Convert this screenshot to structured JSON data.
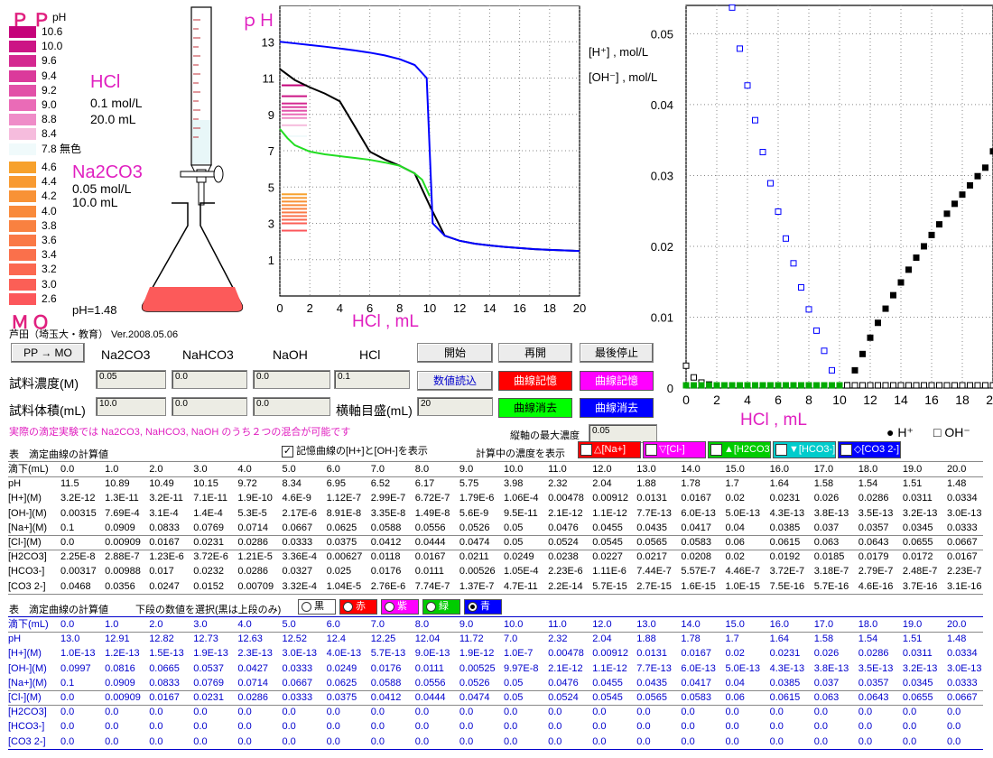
{
  "pp_indicator": {
    "title": "ＰＰ",
    "unit": "pH",
    "entries": [
      {
        "label": "10.6",
        "color": "#c5037a"
      },
      {
        "label": "10.0",
        "color": "#cc1585"
      },
      {
        "label": "9.6",
        "color": "#d42890"
      },
      {
        "label": "9.4",
        "color": "#db3a9b"
      },
      {
        "label": "9.2",
        "color": "#e251a8"
      },
      {
        "label": "9.0",
        "color": "#ea6bb7"
      },
      {
        "label": "8.8",
        "color": "#ef8cc8"
      },
      {
        "label": "8.4",
        "color": "#f6bcdd"
      },
      {
        "label": "7.8 無色",
        "color": "#f0fafb"
      }
    ]
  },
  "mo_indicator": {
    "title": "ＭＯ",
    "entries": [
      {
        "label": "4.6",
        "color": "#f7a12c"
      },
      {
        "label": "4.4",
        "color": "#f89a31"
      },
      {
        "label": "4.2",
        "color": "#f89236"
      },
      {
        "label": "4.0",
        "color": "#f98a3b"
      },
      {
        "label": "3.8",
        "color": "#f98140"
      },
      {
        "label": "3.6",
        "color": "#fa7946"
      },
      {
        "label": "3.4",
        "color": "#fa704b"
      },
      {
        "label": "3.2",
        "color": "#fb6850"
      },
      {
        "label": "3.0",
        "color": "#fb5f56"
      },
      {
        "label": "2.6",
        "color": "#fc575b"
      }
    ]
  },
  "titrant": {
    "name": "HCl",
    "conc": "0.1 mol/L",
    "vol": "20.0 mL"
  },
  "sample": {
    "name": "Na2CO3",
    "conc": "0.05 mol/L",
    "vol": "10.0 mL"
  },
  "flask_ph": "pH=1.48",
  "author": "芦田（埼玉大・教育） Ver.2008.05.06",
  "ph_chart_labels": {
    "ylabel": "ｐＨ",
    "xlabel": "HCl , mL"
  },
  "conc_chart_labels": {
    "h_label": "[H⁺] , mol/L",
    "oh_label": "[OH⁻] , mol/L",
    "xlabel": "HCl , mL"
  },
  "controls": {
    "pp_mo_btn": "PP → MO",
    "col_headers": [
      "Na2CO3",
      "NaHCO3",
      "NaOH",
      "HCl"
    ],
    "row1_label": "試料濃度(M)",
    "row2_label": "試料体積(mL)",
    "row1_values": [
      "0.05",
      "0.0",
      "0.0",
      "0.1"
    ],
    "row2_values": [
      "10.0",
      "0.0",
      "0.0"
    ],
    "axis_label": "横軸目盛(mL)",
    "axis_value": "20",
    "start": "開始",
    "resume": "再開",
    "stop": "最後停止",
    "read": "数値読込",
    "memory_red": "曲線記憶",
    "memory_magenta": "曲線記憶",
    "erase_green": "曲線消去",
    "erase_blue": "曲線消去",
    "note": "実際の滴定実験では Na2CO3, NaHCO3, NaOH のうち２つの混合が可能です",
    "max_conc_label": "縦軸の最大濃度",
    "max_conc_value": "0.05",
    "legend_h": "● H⁺",
    "legend_oh": "□ OH⁻"
  },
  "show_bar": {
    "table_title": "表　滴定曲線の計算値",
    "mem_check": "記憶曲線の[H+]と[OH-]を表示",
    "show_label": "計算中の濃度を表示",
    "species": [
      {
        "label": "△[Na+]",
        "color": "#ff0000"
      },
      {
        "label": "▽[Cl-]",
        "color": "#ff00ff"
      },
      {
        "label": "▲[H2CO3]",
        "color": "#00cc00"
      },
      {
        "label": "▼[HCO3-]",
        "color": "#00cccc"
      },
      {
        "label": "◇[CO3 2-]",
        "color": "#0000ff"
      }
    ]
  },
  "table1": {
    "rows": [
      {
        "label": "滴下(mL)",
        "values": [
          "0.0",
          "1.0",
          "2.0",
          "3.0",
          "4.0",
          "5.0",
          "6.0",
          "7.0",
          "8.0",
          "9.0",
          "10.0",
          "11.0",
          "12.0",
          "13.0",
          "14.0",
          "15.0",
          "16.0",
          "17.0",
          "18.0",
          "19.0",
          "20.0"
        ]
      },
      {
        "label": "pH",
        "values": [
          "11.5",
          "10.89",
          "10.49",
          "10.15",
          "9.72",
          "8.34",
          "6.95",
          "6.52",
          "6.17",
          "5.75",
          "3.98",
          "2.32",
          "2.04",
          "1.88",
          "1.78",
          "1.7",
          "1.64",
          "1.58",
          "1.54",
          "1.51",
          "1.48"
        ]
      },
      {
        "label": "[H+](M)",
        "values": [
          "3.2E-12",
          "1.3E-11",
          "3.2E-11",
          "7.1E-11",
          "1.9E-10",
          "4.6E-9",
          "1.12E-7",
          "2.99E-7",
          "6.72E-7",
          "1.79E-6",
          "1.06E-4",
          "0.00478",
          "0.00912",
          "0.0131",
          "0.0167",
          "0.02",
          "0.0231",
          "0.026",
          "0.0286",
          "0.0311",
          "0.0334"
        ]
      },
      {
        "label": "[OH-](M)",
        "values": [
          "0.00315",
          "7.69E-4",
          "3.1E-4",
          "1.4E-4",
          "5.3E-5",
          "2.17E-6",
          "8.91E-8",
          "3.35E-8",
          "1.49E-8",
          "5.6E-9",
          "9.5E-11",
          "2.1E-12",
          "1.1E-12",
          "7.7E-13",
          "6.0E-13",
          "5.0E-13",
          "4.3E-13",
          "3.8E-13",
          "3.5E-13",
          "3.2E-13",
          "3.0E-13"
        ]
      },
      {
        "label": "[Na+](M)",
        "values": [
          "0.1",
          "0.0909",
          "0.0833",
          "0.0769",
          "0.0714",
          "0.0667",
          "0.0625",
          "0.0588",
          "0.0556",
          "0.0526",
          "0.05",
          "0.0476",
          "0.0455",
          "0.0435",
          "0.0417",
          "0.04",
          "0.0385",
          "0.037",
          "0.0357",
          "0.0345",
          "0.0333"
        ]
      },
      {
        "label": "[Cl-](M)",
        "values": [
          "0.0",
          "0.00909",
          "0.0167",
          "0.0231",
          "0.0286",
          "0.0333",
          "0.0375",
          "0.0412",
          "0.0444",
          "0.0474",
          "0.05",
          "0.0524",
          "0.0545",
          "0.0565",
          "0.0583",
          "0.06",
          "0.0615",
          "0.063",
          "0.0643",
          "0.0655",
          "0.0667"
        ]
      },
      {
        "label": "[H2CO3]",
        "values": [
          "2.25E-8",
          "2.88E-7",
          "1.23E-6",
          "3.72E-6",
          "1.21E-5",
          "3.36E-4",
          "0.00627",
          "0.0118",
          "0.0167",
          "0.0211",
          "0.0249",
          "0.0238",
          "0.0227",
          "0.0217",
          "0.0208",
          "0.02",
          "0.0192",
          "0.0185",
          "0.0179",
          "0.0172",
          "0.0167"
        ]
      },
      {
        "label": "[HCO3-]",
        "values": [
          "0.00317",
          "0.00988",
          "0.017",
          "0.0232",
          "0.0286",
          "0.0327",
          "0.025",
          "0.0176",
          "0.0111",
          "0.00526",
          "1.05E-4",
          "2.23E-6",
          "1.11E-6",
          "7.44E-7",
          "5.57E-7",
          "4.46E-7",
          "3.72E-7",
          "3.18E-7",
          "2.79E-7",
          "2.48E-7",
          "2.23E-7"
        ]
      },
      {
        "label": "[CO3 2-]",
        "values": [
          "0.0468",
          "0.0356",
          "0.0247",
          "0.0152",
          "0.00709",
          "3.32E-4",
          "1.04E-5",
          "2.76E-6",
          "7.74E-7",
          "1.37E-7",
          "4.7E-11",
          "2.2E-14",
          "5.7E-15",
          "2.7E-15",
          "1.6E-15",
          "1.0E-15",
          "7.5E-16",
          "5.7E-16",
          "4.6E-16",
          "3.7E-16",
          "3.1E-16"
        ]
      }
    ]
  },
  "select_bar": {
    "title": "表　滴定曲線の計算値",
    "hint": "下段の数値を選択(黒は上段のみ)",
    "options": [
      {
        "label": "黒",
        "color": "#ffffff",
        "text": "#000",
        "selected": false
      },
      {
        "label": "赤",
        "color": "#ff0000",
        "text": "#fff",
        "selected": false
      },
      {
        "label": "紫",
        "color": "#ff00ff",
        "text": "#fff",
        "selected": false
      },
      {
        "label": "緑",
        "color": "#00cc00",
        "text": "#fff",
        "selected": false
      },
      {
        "label": "青",
        "color": "#0000ff",
        "text": "#fff",
        "selected": true
      }
    ]
  },
  "table2": {
    "rows": [
      {
        "label": "滴下(mL)",
        "values": [
          "0.0",
          "1.0",
          "2.0",
          "3.0",
          "4.0",
          "5.0",
          "6.0",
          "7.0",
          "8.0",
          "9.0",
          "10.0",
          "11.0",
          "12.0",
          "13.0",
          "14.0",
          "15.0",
          "16.0",
          "17.0",
          "18.0",
          "19.0",
          "20.0"
        ]
      },
      {
        "label": "pH",
        "values": [
          "13.0",
          "12.91",
          "12.82",
          "12.73",
          "12.63",
          "12.52",
          "12.4",
          "12.25",
          "12.04",
          "11.72",
          "7.0",
          "2.32",
          "2.04",
          "1.88",
          "1.78",
          "1.7",
          "1.64",
          "1.58",
          "1.54",
          "1.51",
          "1.48"
        ]
      },
      {
        "label": "[H+](M)",
        "values": [
          "1.0E-13",
          "1.2E-13",
          "1.5E-13",
          "1.9E-13",
          "2.3E-13",
          "3.0E-13",
          "4.0E-13",
          "5.7E-13",
          "9.0E-13",
          "1.9E-12",
          "1.0E-7",
          "0.00478",
          "0.00912",
          "0.0131",
          "0.0167",
          "0.02",
          "0.0231",
          "0.026",
          "0.0286",
          "0.0311",
          "0.0334"
        ]
      },
      {
        "label": "[OH-](M)",
        "values": [
          "0.0997",
          "0.0816",
          "0.0665",
          "0.0537",
          "0.0427",
          "0.0333",
          "0.0249",
          "0.0176",
          "0.0111",
          "0.00525",
          "9.97E-8",
          "2.1E-12",
          "1.1E-12",
          "7.7E-13",
          "6.0E-13",
          "5.0E-13",
          "4.3E-13",
          "3.8E-13",
          "3.5E-13",
          "3.2E-13",
          "3.0E-13"
        ]
      },
      {
        "label": "[Na+](M)",
        "values": [
          "0.1",
          "0.0909",
          "0.0833",
          "0.0769",
          "0.0714",
          "0.0667",
          "0.0625",
          "0.0588",
          "0.0556",
          "0.0526",
          "0.05",
          "0.0476",
          "0.0455",
          "0.0435",
          "0.0417",
          "0.04",
          "0.0385",
          "0.037",
          "0.0357",
          "0.0345",
          "0.0333"
        ]
      },
      {
        "label": "[Cl-](M)",
        "values": [
          "0.0",
          "0.00909",
          "0.0167",
          "0.0231",
          "0.0286",
          "0.0333",
          "0.0375",
          "0.0412",
          "0.0444",
          "0.0474",
          "0.05",
          "0.0524",
          "0.0545",
          "0.0565",
          "0.0583",
          "0.06",
          "0.0615",
          "0.063",
          "0.0643",
          "0.0655",
          "0.0667"
        ]
      },
      {
        "label": "[H2CO3]",
        "values": [
          "0.0",
          "0.0",
          "0.0",
          "0.0",
          "0.0",
          "0.0",
          "0.0",
          "0.0",
          "0.0",
          "0.0",
          "0.0",
          "0.0",
          "0.0",
          "0.0",
          "0.0",
          "0.0",
          "0.0",
          "0.0",
          "0.0",
          "0.0",
          "0.0"
        ]
      },
      {
        "label": "[HCO3-]",
        "values": [
          "0.0",
          "0.0",
          "0.0",
          "0.0",
          "0.0",
          "0.0",
          "0.0",
          "0.0",
          "0.0",
          "0.0",
          "0.0",
          "0.0",
          "0.0",
          "0.0",
          "0.0",
          "0.0",
          "0.0",
          "0.0",
          "0.0",
          "0.0",
          "0.0"
        ]
      },
      {
        "label": "[CO3 2-]",
        "values": [
          "0.0",
          "0.0",
          "0.0",
          "0.0",
          "0.0",
          "0.0",
          "0.0",
          "0.0",
          "0.0",
          "0.0",
          "0.0",
          "0.0",
          "0.0",
          "0.0",
          "0.0",
          "0.0",
          "0.0",
          "0.0",
          "0.0",
          "0.0",
          "0.0"
        ]
      }
    ]
  },
  "chart_data": [
    {
      "type": "line",
      "title": "",
      "xlabel": "HCl , mL",
      "ylabel": "ｐＨ",
      "xlim": [
        0,
        20
      ],
      "ylim": [
        -1,
        15
      ],
      "xticks": [
        0,
        2,
        4,
        6,
        8,
        10,
        12,
        14,
        16,
        18,
        20
      ],
      "yticks": [
        1,
        3,
        5,
        7,
        9,
        11,
        13
      ],
      "grid": true,
      "series": [
        {
          "color": "#000000",
          "x": [
            0,
            1,
            2,
            3,
            4,
            5,
            6,
            7,
            8,
            9,
            10,
            11,
            12,
            13,
            14,
            15,
            16,
            17,
            18,
            19,
            20
          ],
          "y": [
            11.5,
            10.89,
            10.49,
            10.15,
            9.72,
            8.34,
            6.95,
            6.52,
            6.17,
            5.75,
            3.98,
            2.32,
            2.04,
            1.88,
            1.78,
            1.7,
            1.64,
            1.58,
            1.54,
            1.51,
            1.48
          ]
        },
        {
          "color": "#0000ff",
          "x": [
            0,
            1,
            2,
            3,
            4,
            5,
            6,
            7,
            8,
            9,
            9.8,
            10,
            10.2,
            11,
            12,
            13,
            14,
            15,
            16,
            17,
            18,
            19,
            20
          ],
          "y": [
            13.0,
            12.91,
            12.82,
            12.73,
            12.63,
            12.52,
            12.4,
            12.25,
            12.04,
            11.72,
            11.0,
            7.0,
            3.0,
            2.32,
            2.04,
            1.88,
            1.78,
            1.7,
            1.64,
            1.58,
            1.54,
            1.51,
            1.48
          ]
        },
        {
          "color": "#22dd22",
          "x": [
            0,
            0.5,
            1,
            2,
            3,
            4,
            5,
            6,
            7,
            8,
            9,
            9.5,
            10
          ],
          "y": [
            8.2,
            7.7,
            7.3,
            6.95,
            6.8,
            6.7,
            6.6,
            6.5,
            6.35,
            6.17,
            5.75,
            5.4,
            4.5
          ]
        }
      ]
    },
    {
      "type": "scatter",
      "title": "",
      "xlabel": "HCl , mL",
      "ylabel_h": "[H⁺] , mol/L",
      "ylabel_oh": "[OH⁻] , mol/L",
      "xlim": [
        0,
        20
      ],
      "ylim": [
        0,
        0.054
      ],
      "xticks": [
        0,
        2,
        4,
        6,
        8,
        10,
        12,
        14,
        16,
        18,
        20
      ],
      "yticks": [
        0,
        0.01,
        0.02,
        0.03,
        0.04,
        0.05
      ],
      "grid": true,
      "series": [
        {
          "name": "H⁺",
          "marker": "filled-square",
          "color": "#000000",
          "x": [
            10.5,
            11,
            11.5,
            12,
            12.5,
            13,
            13.5,
            14,
            14.5,
            15,
            15.5,
            16,
            16.5,
            17,
            17.5,
            18,
            18.5,
            19,
            19.5,
            20
          ],
          "y": [
            0.0004,
            0.0025,
            0.0048,
            0.0071,
            0.0092,
            0.0112,
            0.0131,
            0.0149,
            0.0167,
            0.0184,
            0.02,
            0.0216,
            0.0231,
            0.0246,
            0.026,
            0.0273,
            0.0286,
            0.0299,
            0.0311,
            0.0334
          ]
        },
        {
          "name": "OH⁻",
          "marker": "open-square",
          "color": "#0000ff",
          "x": [
            3,
            3.5,
            4,
            4.5,
            5,
            5.5,
            6,
            6.5,
            7,
            7.5,
            8,
            8.5,
            9,
            9.5
          ],
          "y": [
            0.0537,
            0.0479,
            0.0427,
            0.0378,
            0.0333,
            0.0289,
            0.0249,
            0.0211,
            0.0176,
            0.0142,
            0.0111,
            0.0081,
            0.00525,
            0.0025
          ]
        },
        {
          "name": "OH⁻ (memory)",
          "marker": "open-square",
          "color": "#000000",
          "x": [
            0,
            0.5,
            1,
            1.5,
            2,
            2.5,
            3,
            3.5,
            4,
            4.5,
            5,
            5.5,
            6,
            6.5,
            7,
            7.5,
            8,
            8.5,
            9,
            9.5,
            10,
            10.5,
            11,
            11.5,
            12,
            12.5,
            13,
            13.5,
            14,
            14.5,
            15,
            15.5,
            16,
            16.5,
            17,
            17.5,
            18,
            18.5,
            19,
            19.5,
            20
          ],
          "y": [
            0.00315,
            0.0015,
            0.00077,
            0.0005,
            0.00031,
            0.0002,
            0.00014,
            0.0001,
            5e-05,
            0,
            0,
            0,
            0,
            0,
            0,
            0,
            0,
            0,
            0,
            0,
            0,
            0,
            0,
            0,
            0,
            0,
            0,
            0,
            0,
            0,
            0,
            0,
            0,
            0,
            0,
            0,
            0,
            0,
            0,
            0,
            0
          ]
        },
        {
          "name": "green baseline",
          "marker": "filled-square",
          "color": "#00aa00",
          "x": [
            0,
            0.5,
            1,
            1.5,
            2,
            2.5,
            3,
            3.5,
            4,
            4.5,
            5,
            5.5,
            6,
            6.5,
            7,
            7.5,
            8,
            8.5,
            9,
            9.5,
            10
          ],
          "y": [
            0,
            0,
            0,
            0,
            0,
            0,
            0,
            0,
            0,
            0,
            0,
            0,
            0,
            0,
            0,
            0,
            0,
            0,
            0,
            0,
            0
          ]
        }
      ]
    }
  ]
}
